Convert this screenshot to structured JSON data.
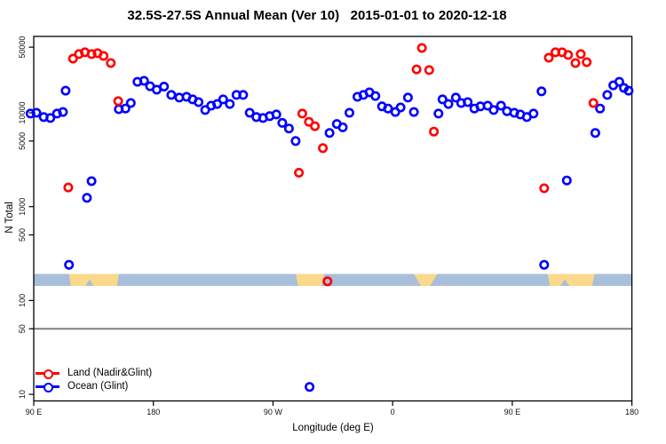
{
  "title": "32.5S-27.5S Annual Mean (Ver 10)   2015-01-01 to 2020-12-18",
  "chart_data": {
    "type": "scatter",
    "title": "32.5S-27.5S Annual Mean (Ver 10)   2015-01-01 to 2020-12-18",
    "xlabel": "Longitude (deg E)",
    "ylabel": "N Total",
    "y_scale": "log10",
    "ylim": [
      9,
      60000
    ],
    "x_axis_span_deg": 450,
    "x_ticks": [
      {
        "deg": 0,
        "label": "90 E"
      },
      {
        "deg": 90,
        "label": "180"
      },
      {
        "deg": 180,
        "label": "90 W"
      },
      {
        "deg": 270,
        "label": "0"
      },
      {
        "deg": 360,
        "label": "90 E"
      },
      {
        "deg": 450,
        "label": "180"
      }
    ],
    "y_ticks": [
      10,
      50,
      100,
      500,
      1000,
      5000,
      10000,
      50000
    ],
    "reference_line_value": 50,
    "reference_line_color": "#808080",
    "legend_position": "bottom-left",
    "series": [
      {
        "name": "Land (Nadir&Glint)",
        "color": "#ff0000",
        "points": [
          [
            26,
            1600
          ],
          [
            29.5,
            37800
          ],
          [
            34,
            42200
          ],
          [
            38.5,
            44100
          ],
          [
            43.5,
            42200
          ],
          [
            48,
            43100
          ],
          [
            52.5,
            40300
          ],
          [
            58,
            33900
          ],
          [
            63.5,
            13300
          ],
          [
            199.5,
            2300
          ],
          [
            202,
            9800
          ],
          [
            207,
            8000
          ],
          [
            211.5,
            7200
          ],
          [
            217.5,
            4200
          ],
          [
            221,
            160
          ],
          [
            288,
            29000
          ],
          [
            292,
            49000
          ],
          [
            297.5,
            28500
          ],
          [
            301,
            6300
          ],
          [
            384,
            1570
          ],
          [
            387.5,
            38600
          ],
          [
            392.5,
            44100
          ],
          [
            397.5,
            44100
          ],
          [
            402,
            41300
          ],
          [
            407.5,
            33900
          ],
          [
            411.5,
            42200
          ],
          [
            416,
            34600
          ],
          [
            421,
            12700
          ]
        ]
      },
      {
        "name": "Ocean (Glint)",
        "color": "#0000ff",
        "points": [
          [
            -2.5,
            9800
          ],
          [
            2,
            10000
          ],
          [
            7.5,
            9000
          ],
          [
            12.5,
            8800
          ],
          [
            17.5,
            9800
          ],
          [
            22,
            10200
          ],
          [
            24,
            17200
          ],
          [
            26.5,
            240
          ],
          [
            40,
            1240
          ],
          [
            43.5,
            1870
          ],
          [
            64,
            10900
          ],
          [
            69,
            11100
          ],
          [
            73,
            12700
          ],
          [
            78,
            21400
          ],
          [
            83,
            21900
          ],
          [
            87.5,
            19200
          ],
          [
            92.5,
            17600
          ],
          [
            98,
            19000
          ],
          [
            103.5,
            15500
          ],
          [
            109.5,
            14500
          ],
          [
            115,
            14800
          ],
          [
            119.5,
            13900
          ],
          [
            124,
            13000
          ],
          [
            129,
            10700
          ],
          [
            133.5,
            11900
          ],
          [
            138,
            12400
          ],
          [
            142.5,
            13900
          ],
          [
            147.5,
            12400
          ],
          [
            152.5,
            15500
          ],
          [
            157.5,
            15500
          ],
          [
            162.5,
            10000
          ],
          [
            167.5,
            9000
          ],
          [
            172.5,
            8800
          ],
          [
            177.5,
            9200
          ],
          [
            182.5,
            9600
          ],
          [
            187,
            7800
          ],
          [
            192,
            6800
          ],
          [
            197,
            5000
          ],
          [
            207.5,
            12
          ],
          [
            222.5,
            6100
          ],
          [
            228,
            7600
          ],
          [
            232.5,
            7000
          ],
          [
            237.5,
            10000
          ],
          [
            243.5,
            14800
          ],
          [
            248,
            15500
          ],
          [
            252.5,
            16500
          ],
          [
            257,
            15100
          ],
          [
            262,
            11700
          ],
          [
            266.5,
            11100
          ],
          [
            272,
            10200
          ],
          [
            276,
            11400
          ],
          [
            281.5,
            14500
          ],
          [
            286,
            10200
          ],
          [
            304.5,
            9800
          ],
          [
            307.5,
            13900
          ],
          [
            312,
            12400
          ],
          [
            317.5,
            14500
          ],
          [
            321.5,
            12700
          ],
          [
            326.5,
            13000
          ],
          [
            331.5,
            11100
          ],
          [
            336,
            11700
          ],
          [
            341.5,
            11900
          ],
          [
            346,
            10700
          ],
          [
            351.5,
            11900
          ],
          [
            356,
            10400
          ],
          [
            361.5,
            10000
          ],
          [
            366,
            9600
          ],
          [
            371,
            9000
          ],
          [
            376,
            9800
          ],
          [
            382,
            16900
          ],
          [
            384,
            240
          ],
          [
            401,
            1900
          ],
          [
            422.5,
            6100
          ],
          [
            426,
            11100
          ],
          [
            431.5,
            15500
          ],
          [
            436,
            19600
          ],
          [
            440.5,
            21400
          ],
          [
            444,
            18400
          ],
          [
            447.5,
            17200
          ]
        ]
      }
    ],
    "surface_band": {
      "description": "land/ocean surface-type strip",
      "value_top": 192,
      "value_bottom": 143,
      "ocean_color": "#a9bedb",
      "land_color": "#fbd98b",
      "land_segments_deg": [
        {
          "from": 26.5,
          "to": 64,
          "taper": 2
        },
        {
          "from": 197,
          "to": 218.5,
          "taper": 3
        },
        {
          "from": 286,
          "to": 303.5,
          "taper": 8
        },
        {
          "from": 386.5,
          "to": 422,
          "taper": 3
        }
      ],
      "ocean_notches_deg": [
        [
          39,
          45
        ],
        [
          396,
          403
        ]
      ]
    }
  },
  "legend": {
    "land_label": "Land (Nadir&Glint)",
    "ocean_label": "Ocean (Glint)"
  }
}
